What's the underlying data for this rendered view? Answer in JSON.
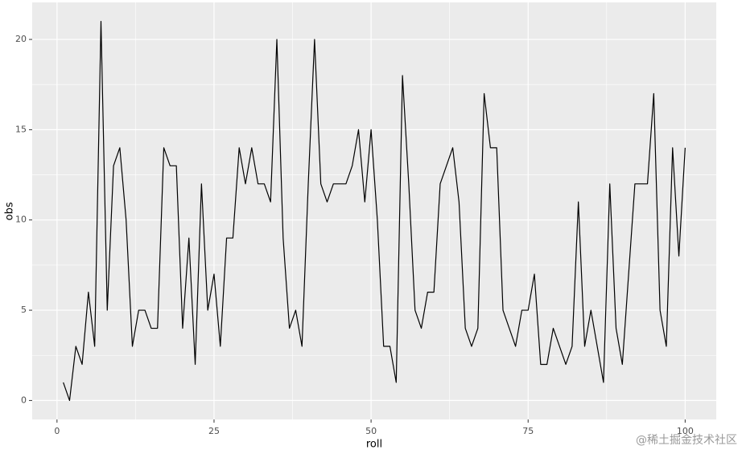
{
  "chart_data": {
    "type": "line",
    "x_label": "roll",
    "y_label": "obs",
    "x": [
      1,
      2,
      3,
      4,
      5,
      6,
      7,
      8,
      9,
      10,
      11,
      12,
      13,
      14,
      15,
      16,
      17,
      18,
      19,
      20,
      21,
      22,
      23,
      24,
      25,
      26,
      27,
      28,
      29,
      30,
      31,
      32,
      33,
      34,
      35,
      36,
      37,
      38,
      39,
      40,
      41,
      42,
      43,
      44,
      45,
      46,
      47,
      48,
      49,
      50,
      51,
      52,
      53,
      54,
      55,
      56,
      57,
      58,
      59,
      60,
      61,
      62,
      63,
      64,
      65,
      66,
      67,
      68,
      69,
      70,
      71,
      72,
      73,
      74,
      75,
      76,
      77,
      78,
      79,
      80,
      81,
      82,
      83,
      84,
      85,
      86,
      87,
      88,
      89,
      90,
      91,
      92,
      93,
      94,
      95,
      96,
      97,
      98,
      99,
      100
    ],
    "values": [
      1,
      0,
      3,
      2,
      6,
      3,
      21,
      5,
      13,
      14,
      10,
      3,
      5,
      5,
      4,
      4,
      14,
      13,
      13,
      4,
      9,
      2,
      12,
      5,
      7,
      3,
      9,
      9,
      14,
      12,
      14,
      12,
      12,
      11,
      20,
      9,
      4,
      5,
      3,
      12,
      20,
      12,
      11,
      12,
      12,
      12,
      13,
      15,
      11,
      15,
      10,
      3,
      3,
      1,
      18,
      12,
      5,
      4,
      6,
      6,
      12,
      13,
      14,
      11,
      4,
      3,
      4,
      17,
      14,
      14,
      5,
      4,
      3,
      5,
      5,
      7,
      2,
      2,
      4,
      3,
      2,
      3,
      11,
      3,
      5,
      3,
      1,
      12,
      4,
      2,
      7,
      12,
      12,
      12,
      17,
      5,
      3,
      14,
      8,
      14
    ],
    "color": "#000000",
    "xlim": [
      -3.95,
      104.95
    ],
    "ylim": [
      -1.05,
      22.05
    ],
    "xticks": [
      0,
      25,
      50,
      75,
      100
    ],
    "yticks": [
      0,
      5,
      10,
      15,
      20
    ],
    "x_minor_grid": [
      12.5,
      37.5,
      62.5,
      87.5
    ],
    "y_minor_grid": [
      2.5,
      7.5,
      12.5,
      17.5
    ],
    "grid": true,
    "panel_background": "#ebebeb",
    "watermark": "@稀土掘金技术社区"
  }
}
